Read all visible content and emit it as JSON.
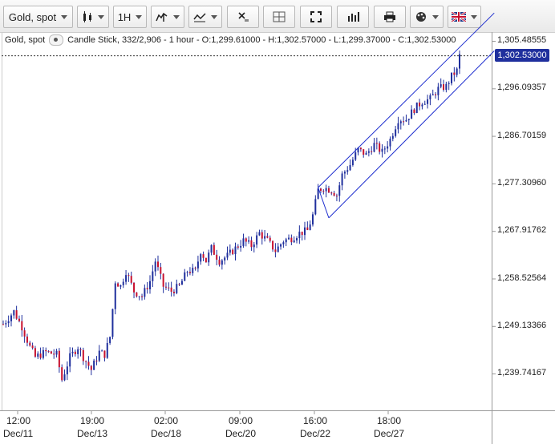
{
  "toolbar": {
    "symbol": "Gold, spot",
    "timeframe": "1H",
    "buttons": [
      "chart-type",
      "timeframe",
      "indicators",
      "drawing-tools",
      "remove-drawings",
      "layout",
      "fullscreen",
      "volume",
      "print",
      "settings",
      "language"
    ]
  },
  "info_line": {
    "symbol": "Gold, spot",
    "details": "Candle Stick, 332/2,906 - 1 hour - O:1,299.61000 - H:1,302.57000 - L:1,299.37000 - C:1,302.53000"
  },
  "last_price": "1,302.53000",
  "colors": {
    "up": "#1f2f9d",
    "down": "#c8102e",
    "channel": "#1f2fcf",
    "price_tag": "#1f2f9d"
  },
  "chart_data": {
    "type": "candlestick",
    "y_ticks": [
      "1,305.48555",
      "1,296.09357",
      "1,286.70159",
      "1,277.30960",
      "1,267.91762",
      "1,258.52564",
      "1,249.13366",
      "1,239.74167"
    ],
    "x_ticks": [
      {
        "time": "12:00",
        "date": "Dec/11"
      },
      {
        "time": "19:00",
        "date": "Dec/13"
      },
      {
        "time": "02:00",
        "date": "Dec/18"
      },
      {
        "time": "09:00",
        "date": "Dec/20"
      },
      {
        "time": "16:00",
        "date": "Dec/22"
      },
      {
        "time": "18:00",
        "date": "Dec/27"
      }
    ],
    "ylim": [
      1235,
      1310
    ],
    "close_path": [
      [
        0,
        1249.5
      ],
      [
        4,
        1252.0
      ],
      [
        7,
        1249.0
      ],
      [
        10,
        1245.0
      ],
      [
        12,
        1243.0
      ],
      [
        16,
        1244.0
      ],
      [
        20,
        1243.5
      ],
      [
        22,
        1238.5
      ],
      [
        25,
        1243.0
      ],
      [
        28,
        1245.0
      ],
      [
        30,
        1243.0
      ],
      [
        33,
        1240.5
      ],
      [
        36,
        1244.0
      ],
      [
        38,
        1243.5
      ],
      [
        40,
        1247.0
      ],
      [
        42,
        1258.0
      ],
      [
        44,
        1257.0
      ],
      [
        46,
        1260.0
      ],
      [
        49,
        1256.0
      ],
      [
        52,
        1255.0
      ],
      [
        55,
        1258.0
      ],
      [
        57,
        1262.0
      ],
      [
        60,
        1257.0
      ],
      [
        63,
        1256.0
      ],
      [
        66,
        1257.0
      ],
      [
        69,
        1260.0
      ],
      [
        72,
        1260.0
      ],
      [
        74,
        1264.0
      ],
      [
        76,
        1262.0
      ],
      [
        78,
        1264.5
      ],
      [
        81,
        1262.0
      ],
      [
        84,
        1263.0
      ],
      [
        87,
        1264.5
      ],
      [
        90,
        1266.0
      ],
      [
        93,
        1265.0
      ],
      [
        96,
        1267.5
      ],
      [
        99,
        1266.0
      ],
      [
        102,
        1264.0
      ],
      [
        105,
        1266.0
      ],
      [
        108,
        1266.5
      ],
      [
        111,
        1267.5
      ],
      [
        114,
        1268.0
      ],
      [
        116,
        1271.0
      ],
      [
        118,
        1276.0
      ],
      [
        120,
        1276.5
      ],
      [
        123,
        1276.0
      ],
      [
        125,
        1275.0
      ],
      [
        127,
        1279.0
      ],
      [
        130,
        1281.0
      ],
      [
        133,
        1284.0
      ],
      [
        136,
        1283.0
      ],
      [
        139,
        1285.0
      ],
      [
        142,
        1283.5
      ],
      [
        145,
        1286.0
      ],
      [
        148,
        1290.0
      ],
      [
        151,
        1290.0
      ],
      [
        154,
        1292.0
      ],
      [
        157,
        1293.5
      ],
      [
        160,
        1294.0
      ],
      [
        163,
        1296.0
      ],
      [
        166,
        1296.5
      ],
      [
        168,
        1298.5
      ],
      [
        170,
        1299.6
      ],
      [
        171,
        1302.53
      ]
    ],
    "channel": {
      "upper": [
        [
          118,
          1276.5
        ],
        [
          184,
          1311.0
        ]
      ],
      "lower": [
        [
          122,
          1270.5
        ],
        [
          184,
          1303.5
        ]
      ]
    },
    "last_close": 1302.53
  }
}
